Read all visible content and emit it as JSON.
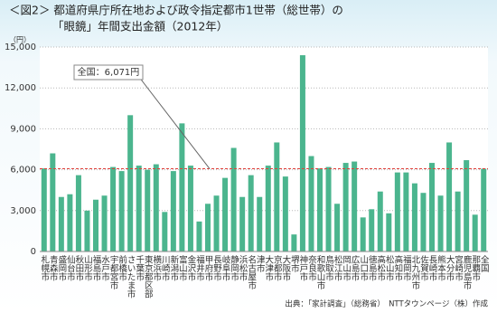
{
  "chart_data": {
    "type": "bar",
    "title": "＜図2＞ 都道府県庁所在地および政令指定都市1世帯（総世帯）の",
    "subtitle": "「眼鏡」年間支出金額（2012年）",
    "y_unit": "（円）",
    "source": "出典：「家計調査」（総務省）　NTTタウンページ（株）作成",
    "categories": [
      "札幌市",
      "青森市",
      "盛岡市",
      "仙台市",
      "秋田市",
      "山形市",
      "福島市",
      "水戸市",
      "宇都宮市",
      "前橋市",
      "さいたま市",
      "千葉市",
      "東京都区部",
      "横浜市",
      "川崎市",
      "新潟市",
      "富山市",
      "金沢市",
      "福井市",
      "甲府市",
      "長野市",
      "岐阜市",
      "静岡市",
      "浜松市",
      "名古屋市",
      "津市",
      "大津市",
      "京都市",
      "大阪市",
      "堺市",
      "神戸市",
      "奈良市",
      "和歌山市",
      "鳥取市",
      "松江市",
      "岡山市",
      "広島市",
      "山口市",
      "徳島市",
      "高松市",
      "松山市",
      "高知市",
      "福岡市",
      "北九州市",
      "佐賀市",
      "長崎市",
      "熊本市",
      "大分市",
      "宮崎市",
      "鹿児島市",
      "那覇市",
      "全国"
    ],
    "values": [
      6100,
      7200,
      4000,
      4200,
      5600,
      3000,
      3800,
      4100,
      6200,
      5900,
      10000,
      6300,
      6000,
      6400,
      2900,
      5900,
      9400,
      6300,
      2200,
      3500,
      4100,
      5400,
      7600,
      4000,
      5600,
      4000,
      6300,
      8000,
      5500,
      1250,
      14400,
      7000,
      6100,
      6200,
      3500,
      6500,
      6600,
      2500,
      3100,
      4400,
      2800,
      5800,
      5800,
      5000,
      4300,
      6500,
      4100,
      8000,
      4400,
      6700,
      2700,
      6071
    ],
    "color": "#4bb58e",
    "reference_line": {
      "value": 6071,
      "label": "全国：6,071円",
      "color": "#e0403a"
    },
    "ylim": [
      0,
      15000
    ],
    "yticks": [
      0,
      {
        "value": 3000,
        "label": "3,000"
      },
      {
        "value": 6000,
        "label": "6,000"
      },
      {
        "value": 9000,
        "label": "9,000"
      },
      {
        "value": 12000,
        "label": "12,000"
      },
      {
        "value": 15000,
        "label": "15,000"
      }
    ],
    "grid": true
  }
}
